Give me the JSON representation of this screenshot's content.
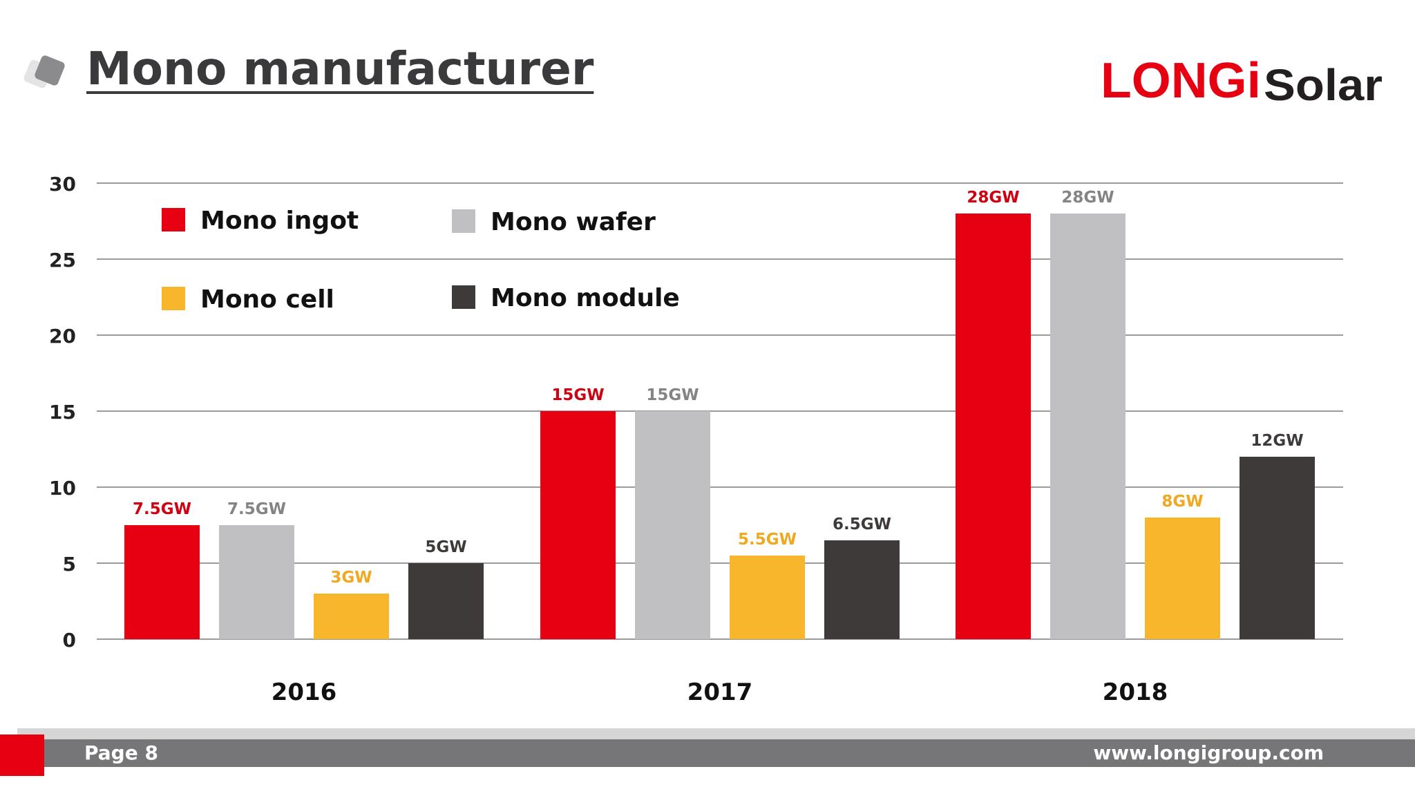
{
  "header": {
    "title": "Mono manufacturer",
    "logo": {
      "brand": "LONGi",
      "product": "Solar",
      "brand_color": "#e60012",
      "product_color": "#231f20"
    }
  },
  "chart_data": {
    "type": "bar",
    "categories": [
      "2016",
      "2017",
      "2018"
    ],
    "series": [
      {
        "name": "Mono ingot",
        "color": "#e60012",
        "label_color": "#d00010",
        "values": [
          7.5,
          15,
          28
        ],
        "labels": [
          "7.5GW",
          "15GW",
          "28GW"
        ]
      },
      {
        "name": "Mono wafer",
        "color": "#c0bfc1",
        "label_color": "#848385",
        "values": [
          7.5,
          15,
          28
        ],
        "labels": [
          "7.5GW",
          "15GW",
          "28GW"
        ]
      },
      {
        "name": "Mono cell",
        "color": "#f8b62d",
        "label_color": "#f0a81e",
        "values": [
          3,
          5.5,
          8
        ],
        "labels": [
          "3GW",
          "5.5GW",
          "8GW"
        ]
      },
      {
        "name": "Mono module",
        "color": "#3e3a39",
        "label_color": "#3e3a39",
        "values": [
          5,
          6.5,
          12
        ],
        "labels": [
          "5GW",
          "6.5GW",
          "12GW"
        ]
      }
    ],
    "ylim": [
      0,
      30
    ],
    "yticks": [
      0,
      5,
      10,
      15,
      20,
      25,
      30
    ],
    "grid": true,
    "legend_position": "top-left"
  },
  "footer": {
    "page": "Page 8",
    "url": "www.longigroup.com"
  }
}
